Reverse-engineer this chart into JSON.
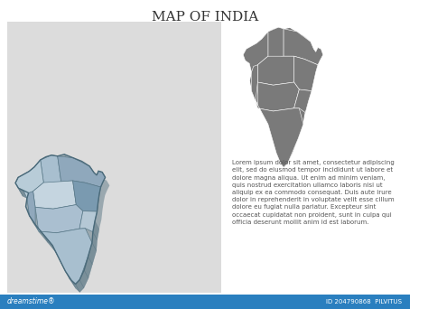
{
  "title": "MAP OF INDIA",
  "title_fontsize": 11,
  "title_color": "#333333",
  "bg_color": "#ffffff",
  "left_panel_bg": "#dcdcdc",
  "isometric_colors": [
    "#a8bfcf",
    "#8fa8bc",
    "#b8ccd8",
    "#c5d5e0",
    "#7a9ab0",
    "#90a8bc",
    "#aabfd0",
    "#b5c8d5"
  ],
  "isometric_shadow_color": "#4a6a7a",
  "flat_map_color": "#7a7a7a",
  "flat_map_line_color": "#ffffff",
  "text_color": "#555555",
  "text_fontsize": 5.0,
  "lorem_text": "Lorem ipsum dolor sit amet, consectetur adipiscing\nelit, sed do eiusmod tempor incididunt ut labore et\ndolore magna aliqua. Ut enim ad minim veniam,\nquis nostrud exercitation ullamco laboris nisi ut\naliquip ex ea commodo consequat. Duis aute irure\ndolor in reprehenderit in voluptate velit esse cillum\ndolore eu fugiat nulla pariatur. Excepteur sint\noccaecat cupidatat non proident, sunt in culpa qui\nofficia deserunt mollit anim id est laborum.",
  "watermark_text": "ID 204790868  PILVITUS",
  "dreamstime_text": "dreamstime®",
  "footer_bar_color": "#2a7fbf"
}
